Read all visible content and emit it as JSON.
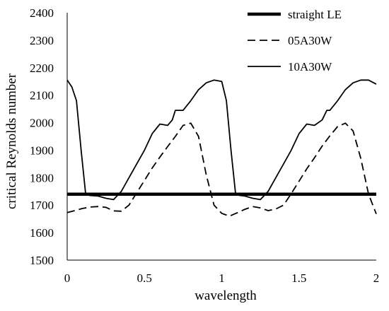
{
  "chart_data": {
    "type": "line",
    "title": "",
    "xlabel": "wavelength",
    "ylabel": "critical Reynolds number",
    "xlim": [
      0,
      2
    ],
    "ylim": [
      1500,
      2400
    ],
    "x_ticks": [
      "0",
      "0.5",
      "1",
      "1.5",
      "2"
    ],
    "y_ticks": [
      "1500",
      "1600",
      "1700",
      "1800",
      "1900",
      "2000",
      "2100",
      "2200",
      "2300",
      "2400"
    ],
    "grid": false,
    "legend_position": "top-right",
    "series": [
      {
        "name": "straight LE",
        "style": "thick-solid",
        "color": "#000000",
        "x": [
          0,
          2
        ],
        "y": [
          1740,
          1740
        ]
      },
      {
        "name": "05A30W",
        "style": "dashed",
        "color": "#000000",
        "x": [
          0,
          0.05,
          0.1,
          0.15,
          0.2,
          0.25,
          0.3,
          0.35,
          0.4,
          0.45,
          0.5,
          0.55,
          0.6,
          0.65,
          0.7,
          0.75,
          0.8,
          0.85,
          0.9,
          0.95,
          1.0,
          1.05,
          1.1,
          1.15,
          1.2,
          1.25,
          1.3,
          1.35,
          1.4,
          1.45,
          1.5,
          1.55,
          1.6,
          1.65,
          1.7,
          1.75,
          1.8,
          1.85,
          1.9,
          1.95,
          2.0
        ],
        "y": [
          1673,
          1680,
          1688,
          1693,
          1695,
          1692,
          1679,
          1678,
          1700,
          1745,
          1790,
          1835,
          1875,
          1913,
          1950,
          1990,
          1998,
          1950,
          1810,
          1700,
          1670,
          1660,
          1672,
          1685,
          1695,
          1690,
          1680,
          1686,
          1700,
          1742,
          1787,
          1832,
          1872,
          1915,
          1952,
          1986,
          1998,
          1970,
          1870,
          1740,
          1668
        ]
      },
      {
        "name": "10A30W",
        "style": "solid",
        "color": "#000000",
        "x": [
          0,
          0.03,
          0.06,
          0.09,
          0.12,
          0.15,
          0.2,
          0.25,
          0.3,
          0.35,
          0.4,
          0.45,
          0.5,
          0.55,
          0.6,
          0.65,
          0.68,
          0.7,
          0.75,
          0.8,
          0.85,
          0.9,
          0.95,
          1.0,
          1.03,
          1.06,
          1.09,
          1.12,
          1.15,
          1.2,
          1.25,
          1.3,
          1.35,
          1.4,
          1.45,
          1.5,
          1.55,
          1.6,
          1.65,
          1.68,
          1.7,
          1.75,
          1.8,
          1.85,
          1.9,
          1.95,
          2.0
        ],
        "y": [
          2155,
          2130,
          2080,
          1900,
          1738,
          1735,
          1733,
          1725,
          1720,
          1750,
          1800,
          1850,
          1900,
          1960,
          1995,
          1990,
          2010,
          2045,
          2045,
          2080,
          2120,
          2145,
          2155,
          2150,
          2080,
          1900,
          1738,
          1735,
          1733,
          1725,
          1720,
          1750,
          1800,
          1850,
          1900,
          1960,
          1995,
          1990,
          2010,
          2045,
          2045,
          2080,
          2120,
          2145,
          2155,
          2155,
          2140
        ]
      }
    ]
  }
}
